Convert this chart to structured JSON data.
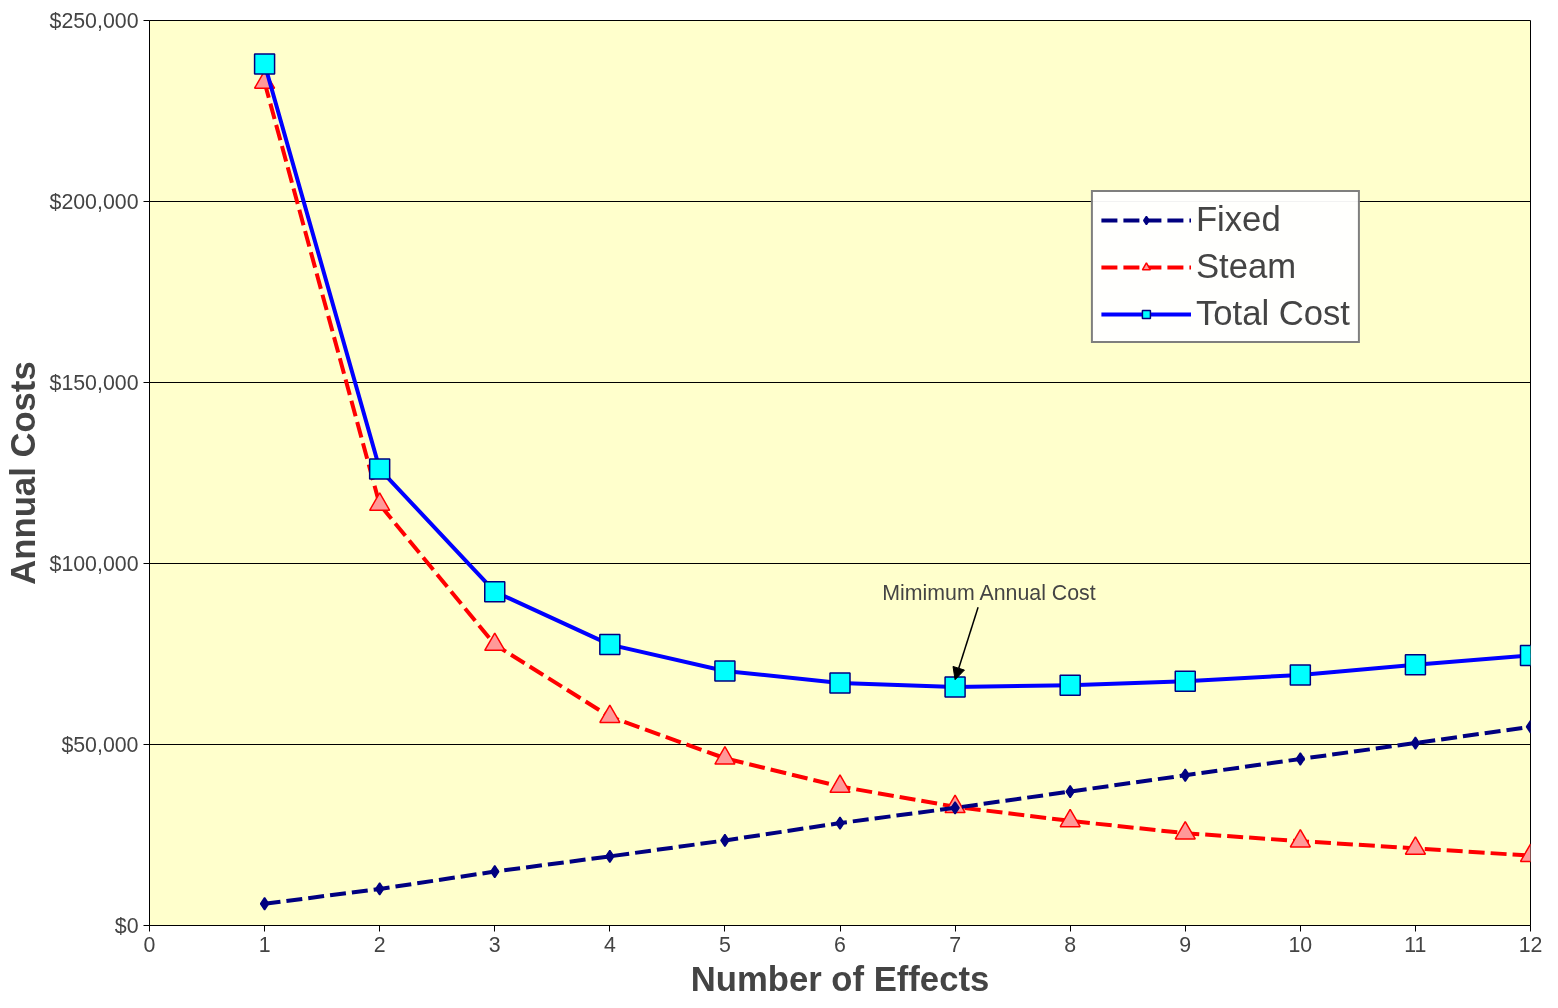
{
  "chart_data": {
    "type": "line",
    "xlabel": "Number of Effects",
    "ylabel": "Annual Costs",
    "x": [
      1,
      2,
      3,
      4,
      5,
      6,
      7,
      8,
      9,
      10,
      11,
      12
    ],
    "series": [
      {
        "name": "Fixed",
        "color": "#000080",
        "marker": "diamond",
        "line_style": "dashed",
        "values": [
          6000,
          10100,
          14900,
          19100,
          23500,
          28300,
          32500,
          37000,
          41500,
          46000,
          50400,
          54900
        ]
      },
      {
        "name": "Steam",
        "color": "#ff0000",
        "marker": "triangle",
        "line_style": "dashed",
        "values": [
          232900,
          116300,
          77600,
          57700,
          46200,
          38400,
          32800,
          28900,
          25500,
          23300,
          21300,
          19300
        ]
      },
      {
        "name": "Total Cost",
        "color": "#0000ff",
        "marker": "square",
        "line_style": "solid",
        "values": [
          238000,
          126100,
          92200,
          77600,
          70300,
          67000,
          65900,
          66400,
          67500,
          69200,
          72000,
          74600
        ]
      }
    ],
    "xlim": [
      0,
      12
    ],
    "xticks": [
      0,
      1,
      2,
      3,
      4,
      5,
      6,
      7,
      8,
      9,
      10,
      11,
      12
    ],
    "ylim": [
      0,
      250000
    ],
    "yticks": [
      {
        "value": 0,
        "label": "$0"
      },
      {
        "value": 50000,
        "label": "$50,000"
      },
      {
        "value": 100000,
        "label": "$100,000"
      },
      {
        "value": 150000,
        "label": "$150,000"
      },
      {
        "value": 200000,
        "label": "$200,000"
      },
      {
        "value": 250000,
        "label": "$250,000"
      }
    ],
    "grid": "y",
    "legend": "top right",
    "annotations": [
      {
        "text": "Mimimum Annual Cost",
        "x": 7,
        "y": 65900
      }
    ]
  }
}
